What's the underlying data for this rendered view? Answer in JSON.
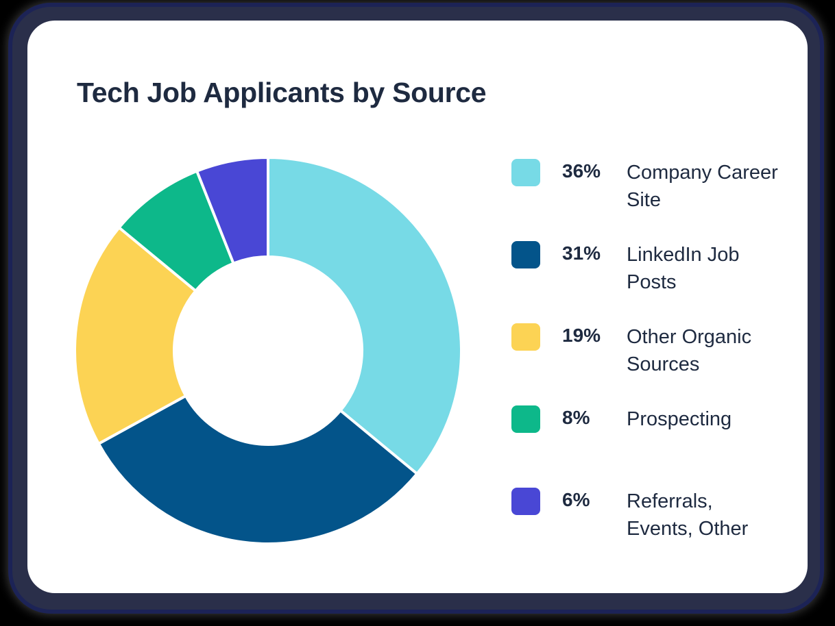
{
  "title": "Tech Job Applicants by Source",
  "legend": [
    {
      "pct": "36%",
      "label": "Company Career Site",
      "color": "#77dae6"
    },
    {
      "pct": "31%",
      "label": "LinkedIn Job Posts",
      "color": "#03548a"
    },
    {
      "pct": "19%",
      "label": "Other Organic Sources",
      "color": "#fcd354"
    },
    {
      "pct": "8%",
      "label": "Prospecting",
      "color": "#0db88a"
    },
    {
      "pct": "6%",
      "label": "Referrals, Events, Other",
      "color": "#4947d5"
    }
  ],
  "chart_data": {
    "type": "pie",
    "variant": "donut",
    "title": "Tech Job Applicants by Source",
    "categories": [
      "Company Career Site",
      "LinkedIn Job Posts",
      "Other Organic Sources",
      "Prospecting",
      "Referrals, Events, Other"
    ],
    "values": [
      36,
      31,
      19,
      8,
      6
    ],
    "unit": "%",
    "colors": [
      "#77dae6",
      "#03548a",
      "#fcd354",
      "#0db88a",
      "#4947d5"
    ],
    "start_angle": "12 o'clock, clockwise",
    "legend_position": "right"
  }
}
